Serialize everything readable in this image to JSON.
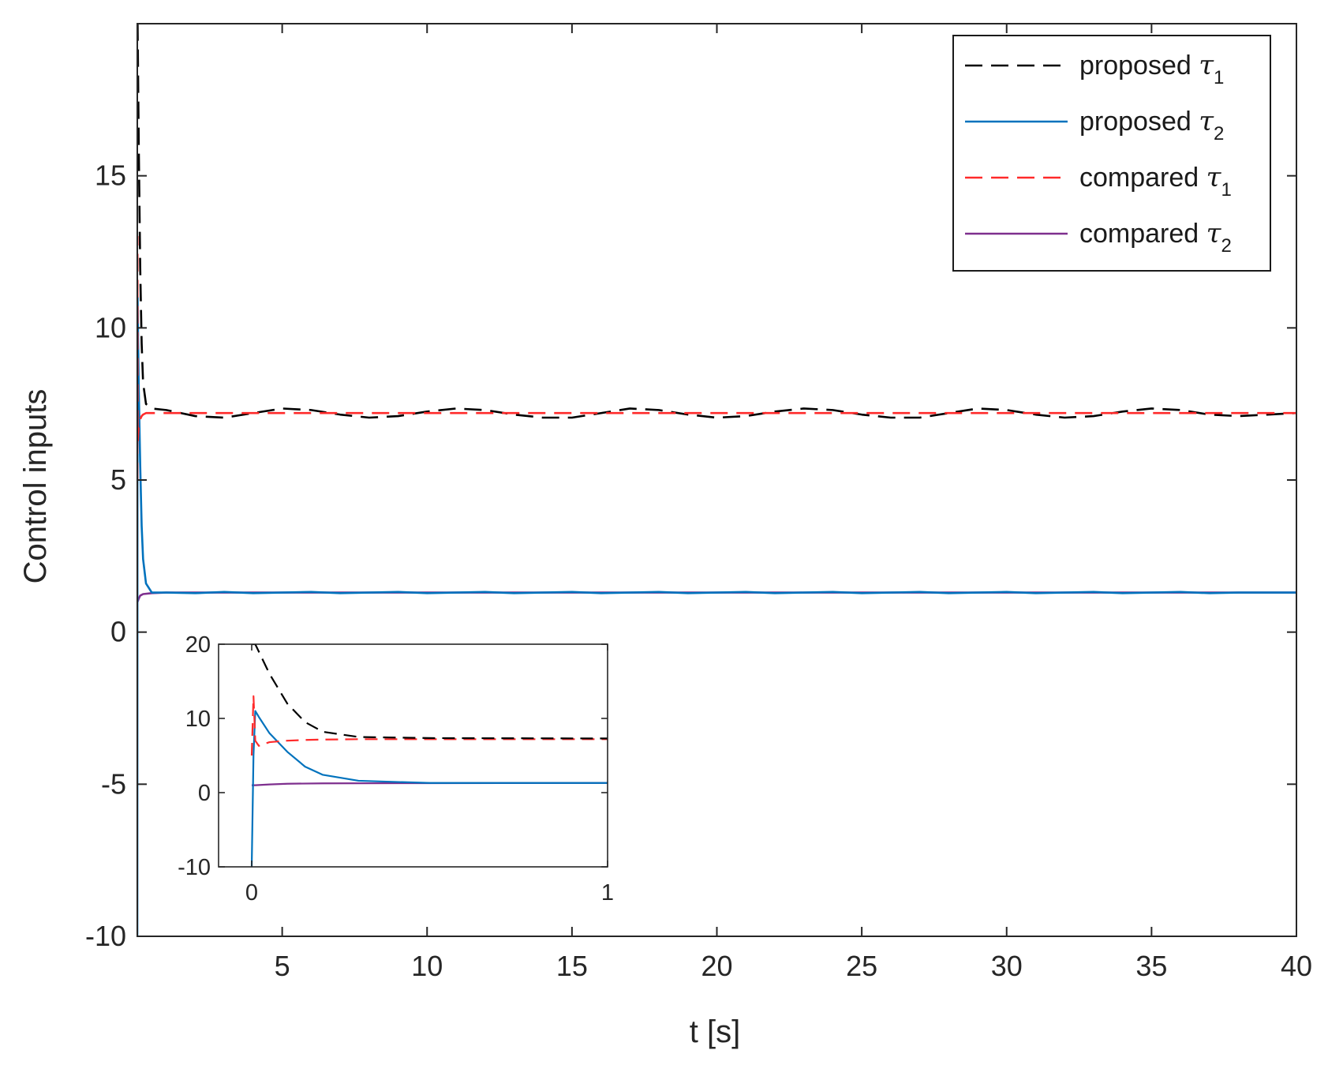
{
  "chart_data": {
    "type": "line",
    "xlabel": "t [s]",
    "ylabel": "Control inputs",
    "xlim": [
      0,
      40
    ],
    "ylim": [
      -10,
      20
    ],
    "xticks": [
      5,
      10,
      15,
      20,
      25,
      30,
      35,
      40
    ],
    "yticks": [
      -10,
      -5,
      0,
      5,
      10,
      15
    ],
    "legend_placement": "top-right",
    "colors": {
      "proposed_tau1": "#000000",
      "proposed_tau2": "#0072BD",
      "compared_tau1": "#FF2A2A",
      "compared_tau2": "#7E2F8E",
      "axes": "#262626"
    },
    "legend": [
      {
        "key": "proposed_tau1",
        "label": "proposed",
        "symbol": "τ",
        "sub": "1",
        "style": "dashed"
      },
      {
        "key": "proposed_tau2",
        "label": "proposed",
        "symbol": "τ",
        "sub": "2",
        "style": "solid"
      },
      {
        "key": "compared_tau1",
        "label": "compared",
        "symbol": "τ",
        "sub": "1",
        "style": "dashed"
      },
      {
        "key": "compared_tau2",
        "label": "compared",
        "symbol": "τ",
        "sub": "2",
        "style": "solid"
      }
    ],
    "series": [
      {
        "key": "proposed_tau1",
        "style": "dashed",
        "x": [
          0,
          0.01,
          0.05,
          0.1,
          0.15,
          0.2,
          0.3,
          0.5,
          1,
          2,
          3,
          4,
          5,
          6,
          7,
          8,
          9,
          10,
          11,
          12,
          13,
          14,
          15,
          16,
          17,
          18,
          19,
          20,
          21,
          22,
          23,
          24,
          25,
          26,
          27,
          28,
          29,
          30,
          31,
          32,
          33,
          34,
          35,
          36,
          37,
          38,
          39,
          40
        ],
        "y": [
          20,
          20,
          16,
          12,
          9.5,
          8.2,
          7.5,
          7.35,
          7.3,
          7.1,
          7.05,
          7.2,
          7.35,
          7.3,
          7.15,
          7.05,
          7.1,
          7.25,
          7.35,
          7.3,
          7.15,
          7.05,
          7.05,
          7.2,
          7.35,
          7.3,
          7.15,
          7.05,
          7.1,
          7.25,
          7.35,
          7.3,
          7.15,
          7.05,
          7.05,
          7.2,
          7.35,
          7.3,
          7.15,
          7.05,
          7.1,
          7.25,
          7.35,
          7.3,
          7.15,
          7.1,
          7.15,
          7.2
        ]
      },
      {
        "key": "proposed_tau2",
        "style": "solid",
        "x": [
          0,
          0.005,
          0.01,
          0.02,
          0.05,
          0.1,
          0.15,
          0.2,
          0.3,
          0.5,
          1,
          2,
          3,
          4,
          5,
          6,
          7,
          8,
          9,
          10,
          11,
          12,
          13,
          14,
          15,
          16,
          17,
          18,
          19,
          20,
          21,
          22,
          23,
          24,
          25,
          26,
          27,
          28,
          29,
          30,
          31,
          32,
          33,
          34,
          35,
          36,
          37,
          38,
          39,
          40
        ],
        "y": [
          -10,
          5,
          11,
          10.2,
          8,
          5.5,
          3.5,
          2.4,
          1.6,
          1.3,
          1.3,
          1.28,
          1.32,
          1.28,
          1.3,
          1.32,
          1.28,
          1.3,
          1.32,
          1.28,
          1.3,
          1.32,
          1.28,
          1.3,
          1.32,
          1.28,
          1.3,
          1.32,
          1.28,
          1.3,
          1.32,
          1.28,
          1.3,
          1.32,
          1.28,
          1.3,
          1.32,
          1.28,
          1.3,
          1.32,
          1.28,
          1.3,
          1.32,
          1.28,
          1.3,
          1.32,
          1.28,
          1.3,
          1.3,
          1.3
        ]
      },
      {
        "key": "compared_tau1",
        "style": "dashed",
        "x": [
          0,
          0.005,
          0.01,
          0.02,
          0.03,
          0.05,
          0.1,
          0.15,
          0.2,
          0.3,
          0.5,
          1,
          40
        ],
        "y": [
          5,
          13,
          7,
          6.3,
          6.5,
          6.8,
          7,
          7.1,
          7.15,
          7.2,
          7.2,
          7.2,
          7.2
        ]
      },
      {
        "key": "compared_tau2",
        "style": "solid",
        "x": [
          0,
          0.01,
          0.05,
          0.1,
          0.2,
          0.5,
          1,
          40
        ],
        "y": [
          1.0,
          1.0,
          1.1,
          1.2,
          1.25,
          1.28,
          1.3,
          1.3
        ]
      }
    ],
    "inset": {
      "xlim": [
        0,
        1
      ],
      "ylim": [
        -10,
        20
      ],
      "xticks": [
        0,
        1
      ],
      "yticks": [
        -10,
        0,
        10,
        20
      ]
    }
  }
}
